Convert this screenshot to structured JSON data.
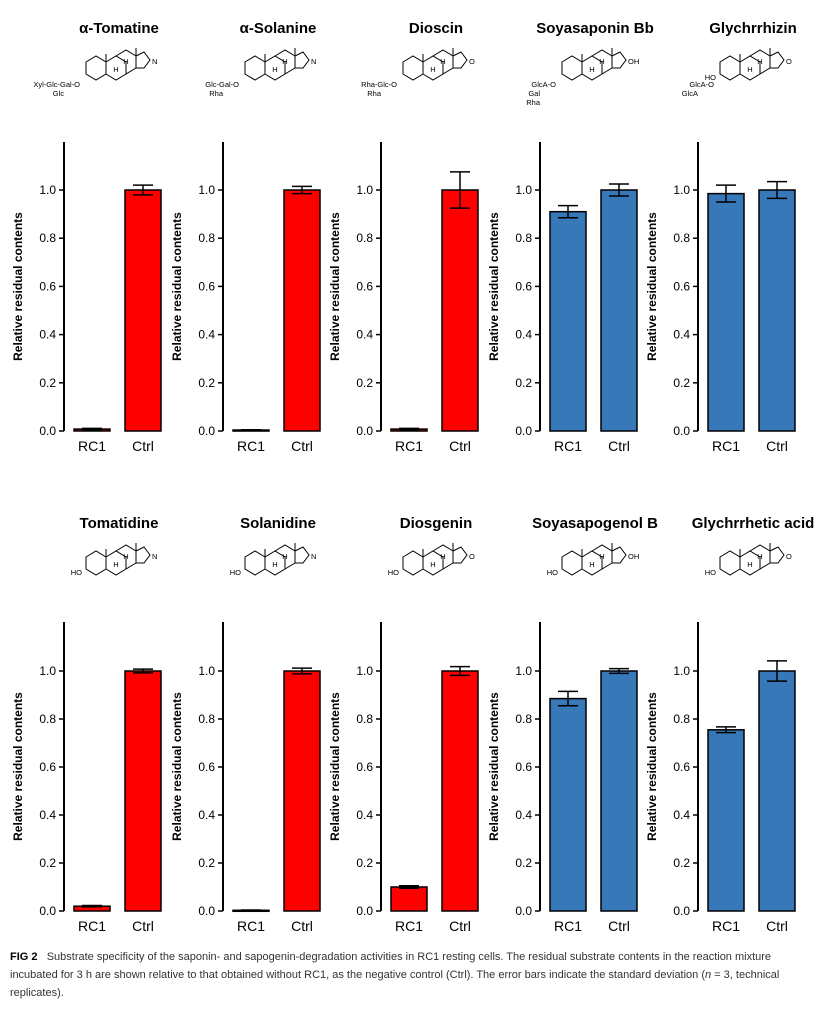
{
  "colors": {
    "red": "#ff0000",
    "blue": "#3779b8",
    "axis": "#000000"
  },
  "panel_structures": {
    "a-tomatine": {
      "sugar_chain": [
        "Xyl-Glc-Gal-O",
        "Glc"
      ],
      "N": "N",
      "H": "H"
    },
    "a-solanine": {
      "sugar_chain": [
        "Glc-Gal-O",
        "Rha"
      ],
      "N": "N",
      "H": "H"
    },
    "dioscin": {
      "sugar_chain": [
        "Rha-Glc-O",
        "Rha"
      ],
      "O": "O",
      "H": "H"
    },
    "soyasaponin-bb": {
      "sugar_chain": [
        "GlcA-O",
        "Gal",
        "Rha"
      ],
      "OH": "OH",
      "H": "H"
    },
    "glycyrrhizin": {
      "sugar_chain": [
        "GlcA-O",
        "GlcA"
      ],
      "O": "O",
      "HO": "HO",
      "H": "H"
    },
    "tomatidine": {
      "HO": "HO",
      "N": "N",
      "H": "H"
    },
    "solanidine": {
      "HO": "HO",
      "N": "N",
      "H": "H"
    },
    "diosgenin": {
      "HO": "HO",
      "O": "O",
      "H": "H"
    },
    "soyasapogenol-b": {
      "HO": "HO",
      "OH": "OH",
      "H": "H"
    },
    "glycyrrhetic-acid": {
      "HO": "HO",
      "O": "O",
      "H": "H"
    }
  },
  "chart_data": [
    {
      "type": "bar",
      "title": "α-Tomatine",
      "ylabel": "Relative residual contents",
      "categories": [
        "RC1",
        "Ctrl"
      ],
      "values": [
        0.008,
        1.0
      ],
      "errors": [
        0.003,
        0.02
      ],
      "colors": [
        "#ff0000",
        "#ff0000"
      ],
      "ylim": [
        0,
        1.2
      ],
      "yticks": [
        "0.0",
        "0.2",
        "0.4",
        "0.6",
        "0.8",
        "1.0"
      ]
    },
    {
      "type": "bar",
      "title": "α-Solanine",
      "ylabel": "Relative residual contents",
      "categories": [
        "RC1",
        "Ctrl"
      ],
      "values": [
        0.004,
        1.0
      ],
      "errors": [
        0.001,
        0.015
      ],
      "colors": [
        "#ff0000",
        "#ff0000"
      ],
      "ylim": [
        0,
        1.2
      ],
      "yticks": [
        "0.0",
        "0.2",
        "0.4",
        "0.6",
        "0.8",
        "1.0"
      ]
    },
    {
      "type": "bar",
      "title": "Dioscin",
      "ylabel": "Relative residual contents",
      "categories": [
        "RC1",
        "Ctrl"
      ],
      "values": [
        0.008,
        1.0
      ],
      "errors": [
        0.003,
        0.075
      ],
      "colors": [
        "#ff0000",
        "#ff0000"
      ],
      "ylim": [
        0,
        1.2
      ],
      "yticks": [
        "0.0",
        "0.2",
        "0.4",
        "0.6",
        "0.8",
        "1.0"
      ]
    },
    {
      "type": "bar",
      "title": "Soyasaponin Bb",
      "ylabel": "Relative residual contents",
      "categories": [
        "RC1",
        "Ctrl"
      ],
      "values": [
        0.91,
        1.0
      ],
      "errors": [
        0.025,
        0.025
      ],
      "colors": [
        "#3779b8",
        "#3779b8"
      ],
      "ylim": [
        0,
        1.2
      ],
      "yticks": [
        "0.0",
        "0.2",
        "0.4",
        "0.6",
        "0.8",
        "1.0"
      ]
    },
    {
      "type": "bar",
      "title": "Glychrrhizin",
      "ylabel": "Relative residual contents",
      "categories": [
        "RC1",
        "Ctrl"
      ],
      "values": [
        0.985,
        1.0
      ],
      "errors": [
        0.035,
        0.035
      ],
      "colors": [
        "#3779b8",
        "#3779b8"
      ],
      "ylim": [
        0,
        1.2
      ],
      "yticks": [
        "0.0",
        "0.2",
        "0.4",
        "0.6",
        "0.8",
        "1.0"
      ]
    },
    {
      "type": "bar",
      "title": "Tomatidine",
      "ylabel": "Relative residual contents",
      "categories": [
        "RC1",
        "Ctrl"
      ],
      "values": [
        0.02,
        1.0
      ],
      "errors": [
        0.003,
        0.008
      ],
      "colors": [
        "#ff0000",
        "#ff0000"
      ],
      "ylim": [
        0,
        1.2
      ],
      "yticks": [
        "0.0",
        "0.2",
        "0.4",
        "0.6",
        "0.8",
        "1.0"
      ]
    },
    {
      "type": "bar",
      "title": "Solanidine",
      "ylabel": "Relative residual contents",
      "categories": [
        "RC1",
        "Ctrl"
      ],
      "values": [
        0.003,
        1.0
      ],
      "errors": [
        0.001,
        0.012
      ],
      "colors": [
        "#ff0000",
        "#ff0000"
      ],
      "ylim": [
        0,
        1.2
      ],
      "yticks": [
        "0.0",
        "0.2",
        "0.4",
        "0.6",
        "0.8",
        "1.0"
      ]
    },
    {
      "type": "bar",
      "title": "Diosgenin",
      "ylabel": "Relative residual contents",
      "categories": [
        "RC1",
        "Ctrl"
      ],
      "values": [
        0.1,
        1.0
      ],
      "errors": [
        0.005,
        0.018
      ],
      "colors": [
        "#ff0000",
        "#ff0000"
      ],
      "ylim": [
        0,
        1.2
      ],
      "yticks": [
        "0.0",
        "0.2",
        "0.4",
        "0.6",
        "0.8",
        "1.0"
      ]
    },
    {
      "type": "bar",
      "title": "Soyasapogenol B",
      "ylabel": "Relative residual contents",
      "categories": [
        "RC1",
        "Ctrl"
      ],
      "values": [
        0.885,
        1.0
      ],
      "errors": [
        0.03,
        0.01
      ],
      "colors": [
        "#3779b8",
        "#3779b8"
      ],
      "ylim": [
        0,
        1.2
      ],
      "yticks": [
        "0.0",
        "0.2",
        "0.4",
        "0.6",
        "0.8",
        "1.0"
      ]
    },
    {
      "type": "bar",
      "title": "Glychrrhetic acid",
      "ylabel": "Relative residual contents",
      "categories": [
        "RC1",
        "Ctrl"
      ],
      "values": [
        0.755,
        1.0
      ],
      "errors": [
        0.012,
        0.042
      ],
      "colors": [
        "#3779b8",
        "#3779b8"
      ],
      "ylim": [
        0,
        1.2
      ],
      "yticks": [
        "0.0",
        "0.2",
        "0.4",
        "0.6",
        "0.8",
        "1.0"
      ]
    }
  ],
  "caption": {
    "label": "FIG 2",
    "segments": [
      "Substrate specificity of the saponin- and sapogenin-degradation activities in RC1 resting cells. The residual substrate contents in the reaction mixture incubated for 3 h are shown relative to that obtained without RC1, as the negative control (Ctrl). The error bars indicate the standard deviation (",
      "n",
      " = 3, technical replicates)."
    ]
  }
}
